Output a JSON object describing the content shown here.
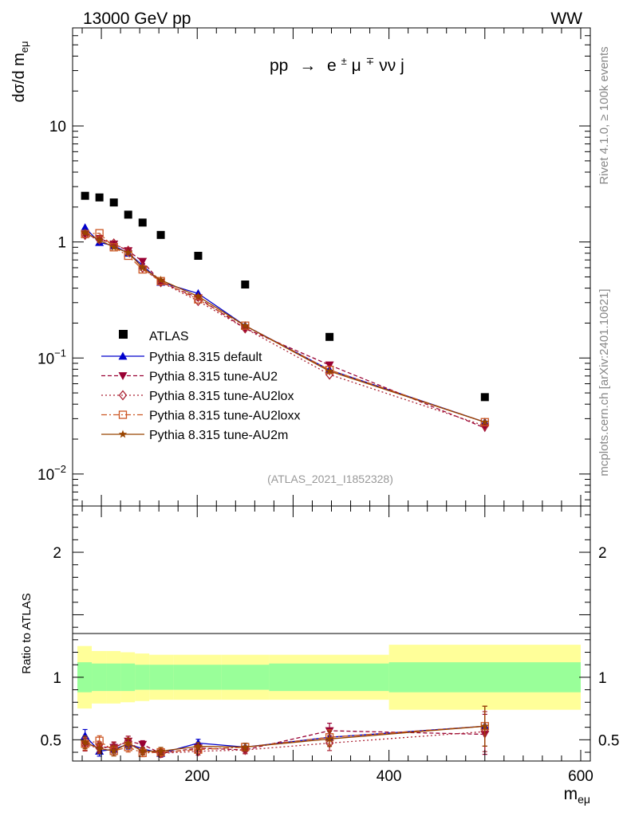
{
  "header": {
    "left_title": "13000 GeV pp",
    "right_title": "WW"
  },
  "side_labels": {
    "rivet": "Rivet 4.1.0, ≥ 100k events",
    "mcplots": "mcplots.cern.ch [arXiv:2401.10621]"
  },
  "chart_data": {
    "type": "line",
    "title": "pp → e±μ∓νν j",
    "process": {
      "base": "pp",
      "arrow": "→",
      "e": "e",
      "e_sup": "±",
      "mu": "μ",
      "mu_sup": "∓",
      "rest": "νν j"
    },
    "analysis_label": "(ATLAS_2021_I1852328)",
    "xlabel": {
      "main": "m",
      "sub": "eμ"
    },
    "ylabel": {
      "main": "dσ/d m",
      "sub": "eμ"
    },
    "ratio_ylabel": "Ratio to ATLAS",
    "xlim": [
      70,
      610
    ],
    "ylim_main": [
      0.0053,
      70
    ],
    "ylim_ratio": [
      0.33,
      2.37
    ],
    "yscale_main": "log",
    "legend_position": "lower-left",
    "x_ticks": [
      200,
      400,
      600
    ],
    "main_y_ticks": [
      {
        "label": "10",
        "exp": "",
        "value": 10
      },
      {
        "label": "1",
        "exp": "",
        "value": 1
      },
      {
        "label": "10",
        "exp": "−1",
        "value": 0.1
      },
      {
        "label": "10",
        "exp": "−2",
        "value": 0.01
      }
    ],
    "ratio_y_ticks": [
      "0.5",
      "1",
      "2"
    ],
    "bin_edges": [
      75,
      90,
      105,
      120,
      135,
      150,
      175,
      225,
      275,
      400,
      600
    ],
    "x": [
      83,
      98,
      113,
      128,
      143,
      162,
      201,
      250,
      338,
      500
    ],
    "atlas": {
      "name": "ATLAS",
      "values": [
        2.5,
        2.42,
        2.19,
        1.72,
        1.47,
        1.15,
        0.76,
        0.43,
        0.152,
        0.046
      ],
      "band_inner": [
        0.12,
        0.11,
        0.11,
        0.11,
        0.1,
        0.1,
        0.1,
        0.1,
        0.11,
        0.12
      ],
      "band_outer": [
        0.25,
        0.21,
        0.21,
        0.2,
        0.19,
        0.18,
        0.18,
        0.18,
        0.18,
        0.26
      ]
    },
    "series": [
      {
        "name": "Pythia 8.315 default",
        "color": "#0000cc",
        "marker": "triangle-up",
        "dash": "",
        "values": [
          1.33,
          0.99,
          0.93,
          0.8,
          0.63,
          0.45,
          0.36,
          0.19,
          0.079,
          0.028
        ],
        "ratio_err": [
          0.05,
          0.04,
          0.04,
          0.04,
          0.03,
          0.03,
          0.03,
          0.03,
          0.06,
          0.16
        ]
      },
      {
        "name": "Pythia 8.315 tune-AU2",
        "color": "#990033",
        "marker": "triangle-down",
        "dash": "5,3",
        "values": [
          1.16,
          1.07,
          0.96,
          0.84,
          0.68,
          0.45,
          0.33,
          0.18,
          0.087,
          0.025
        ],
        "ratio_err": [
          0.05,
          0.04,
          0.04,
          0.04,
          0.03,
          0.03,
          0.03,
          0.03,
          0.06,
          0.16
        ]
      },
      {
        "name": "Pythia 8.315 tune-AU2lox",
        "color": "#aa2233",
        "marker": "diamond-open",
        "dash": "2,3",
        "values": [
          1.15,
          1.05,
          0.97,
          0.84,
          0.6,
          0.45,
          0.31,
          0.18,
          0.072,
          0.026
        ],
        "ratio_err": [
          0.05,
          0.04,
          0.04,
          0.04,
          0.03,
          0.03,
          0.03,
          0.03,
          0.06,
          0.16
        ]
      },
      {
        "name": "Pythia 8.315 tune-AU2loxx",
        "color": "#cc5522",
        "marker": "square-open",
        "dash": "7,3,2,3",
        "values": [
          1.17,
          1.19,
          0.9,
          0.76,
          0.58,
          0.46,
          0.32,
          0.19,
          0.079,
          0.028
        ],
        "ratio_err": [
          0.05,
          0.04,
          0.04,
          0.04,
          0.03,
          0.03,
          0.03,
          0.03,
          0.06,
          0.16
        ]
      },
      {
        "name": "Pythia 8.315 tune-AU2m",
        "color": "#994400",
        "marker": "star",
        "dash": "",
        "values": [
          1.2,
          1.04,
          0.9,
          0.81,
          0.6,
          0.47,
          0.34,
          0.19,
          0.077,
          0.028
        ],
        "ratio_err": [
          0.05,
          0.04,
          0.04,
          0.04,
          0.03,
          0.03,
          0.03,
          0.03,
          0.06,
          0.16
        ]
      }
    ]
  }
}
